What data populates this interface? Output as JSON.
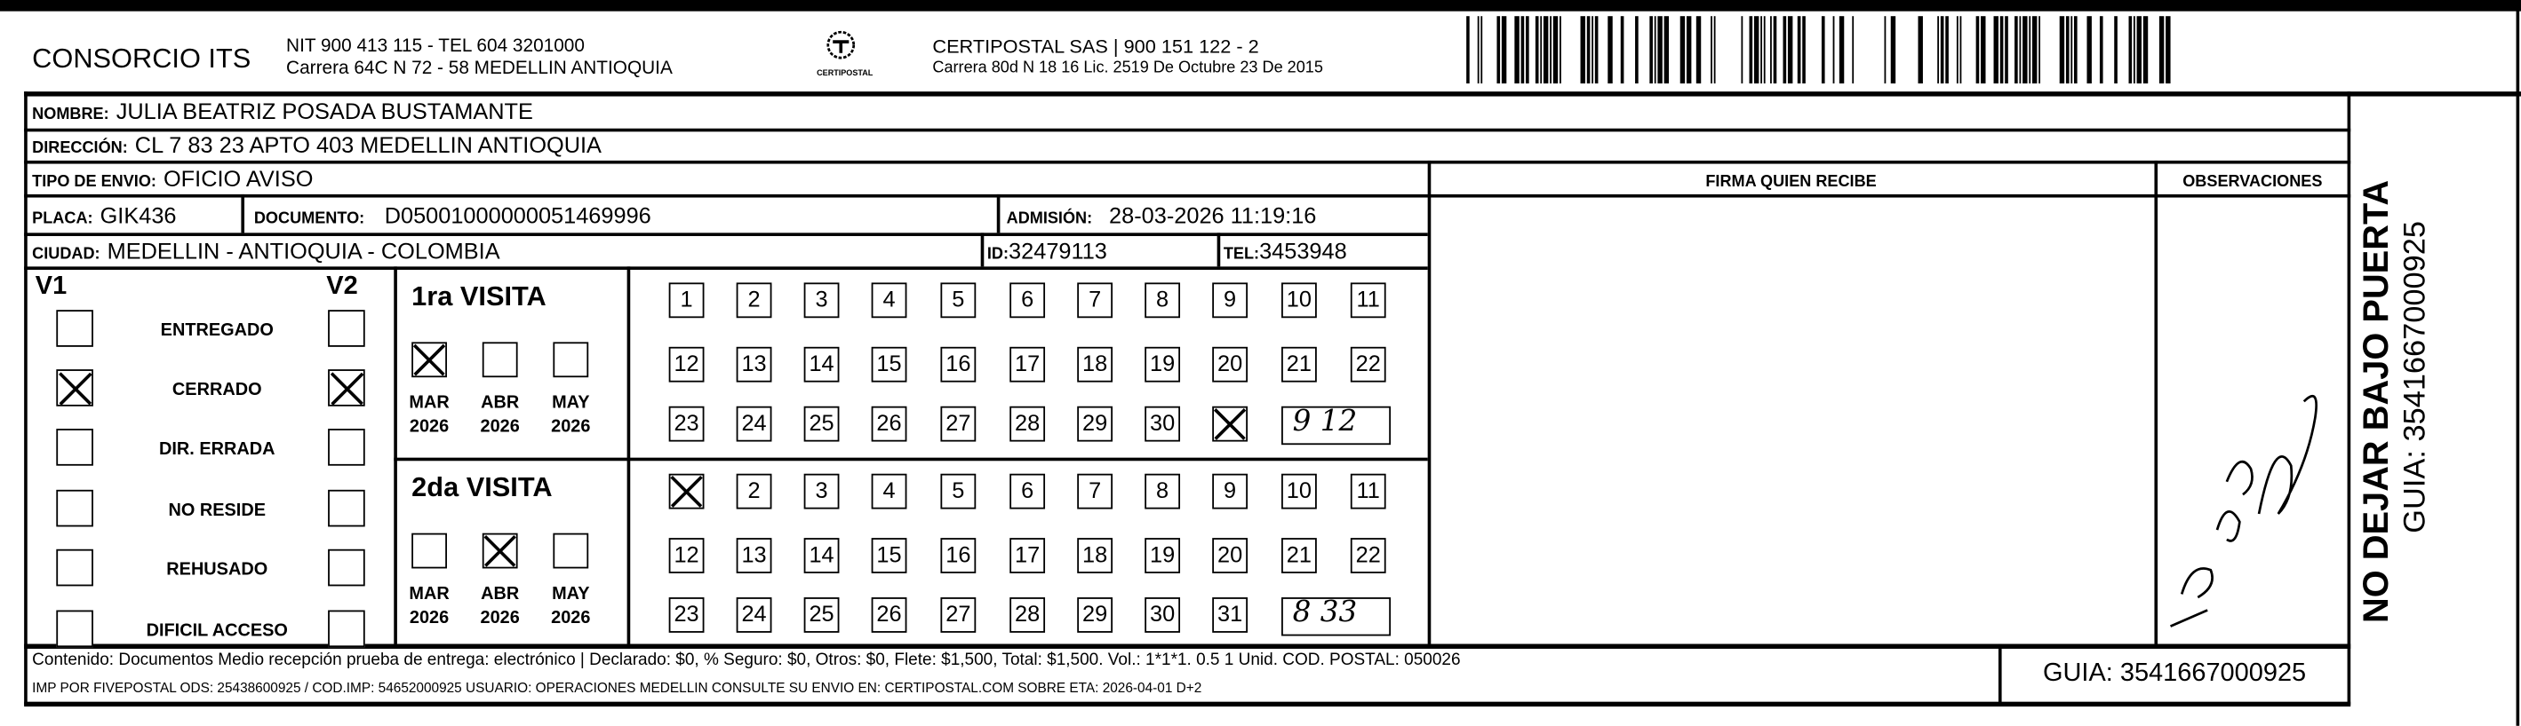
{
  "header": {
    "company": "CONSORCIO ITS",
    "company_line1": "NIT 900 413 115 - TEL 604 3201000",
    "company_line2": "Carrera 64C N 72 - 58 MEDELLIN ANTIOQUIA",
    "logo_text": "CERTIPOSTAL",
    "carrier_line1": "CERTIPOSTAL SAS | 900 151 122 - 2",
    "carrier_line2": "Carrera 80d N 18 16  Lic. 2519 De Octubre 23 De 2015"
  },
  "recipient": {
    "nombre_label": "NOMBRE:",
    "nombre": "JULIA BEATRIZ POSADA BUSTAMANTE",
    "direccion_label": "DIRECCIÓN:",
    "direccion": "CL 7 83 23 APTO 403 MEDELLIN ANTIOQUIA",
    "tipo_label": "TIPO DE ENVIO:",
    "tipo": "OFICIO AVISO",
    "placa_label": "PLACA:",
    "placa": "GIK436",
    "documento_label": "DOCUMENTO:",
    "documento": "D05001000000051469996",
    "admision_label": "ADMISIÓN:",
    "admision": "28-03-2026 11:19:16",
    "ciudad_label": "CIUDAD:",
    "ciudad": "MEDELLIN - ANTIOQUIA - COLOMBIA",
    "id_label": "ID:",
    "id": "32479113",
    "tel_label": "TEL:",
    "tel": "3453948"
  },
  "signature_area": {
    "firma_label": "FIRMA QUIEN RECIBE",
    "observaciones_label": "OBSERVACIONES"
  },
  "status": {
    "v1_label": "V1",
    "v2_label": "V2",
    "items": [
      {
        "label": "ENTREGADO",
        "v1": false,
        "v2": false
      },
      {
        "label": "CERRADO",
        "v1": true,
        "v2": true
      },
      {
        "label": "DIR. ERRADA",
        "v1": false,
        "v2": false
      },
      {
        "label": "NO RESIDE",
        "v1": false,
        "v2": false
      },
      {
        "label": "REHUSADO",
        "v1": false,
        "v2": false
      },
      {
        "label": "DIFICIL ACCESO",
        "v1": false,
        "v2": false
      }
    ]
  },
  "visits": [
    {
      "title": "1ra VISITA",
      "months": [
        {
          "m": "MAR",
          "y": "2026",
          "checked": true
        },
        {
          "m": "ABR",
          "y": "2026",
          "checked": false
        },
        {
          "m": "MAY",
          "y": "2026",
          "checked": false
        }
      ],
      "marked_days": [
        31
      ],
      "handwritten_time": "9 12"
    },
    {
      "title": "2da VISITA",
      "months": [
        {
          "m": "MAR",
          "y": "2026",
          "checked": false
        },
        {
          "m": "ABR",
          "y": "2026",
          "checked": true
        },
        {
          "m": "MAY",
          "y": "2026",
          "checked": false
        }
      ],
      "marked_days": [
        1
      ],
      "handwritten_time": "8 33"
    }
  ],
  "footer": {
    "contenido": "Contenido: Documentos Medio recepción prueba de entrega: electrónico | Declarado: $0, % Seguro: $0, Otros: $0, Flete: $1,500, Total: $1,500. Vol.: 1*1*1. 0.5  1 Unid. COD. POSTAL: 050026",
    "imp": "IMP POR FIVEPOSTAL ODS: 25438600925 / COD.IMP: 54652000925 USUARIO: OPERACIONES MEDELLIN CONSULTE SU ENVIO EN: CERTIPOSTAL.COM SOBRE ETA: 2026-04-01 D+2",
    "guia": "GUIA: 3541667000925"
  },
  "side": {
    "warning": "NO DEJAR BAJO PUERTA",
    "guia": "GUIA: 3541667000925"
  },
  "signature_text": "F. Jons Onegro"
}
